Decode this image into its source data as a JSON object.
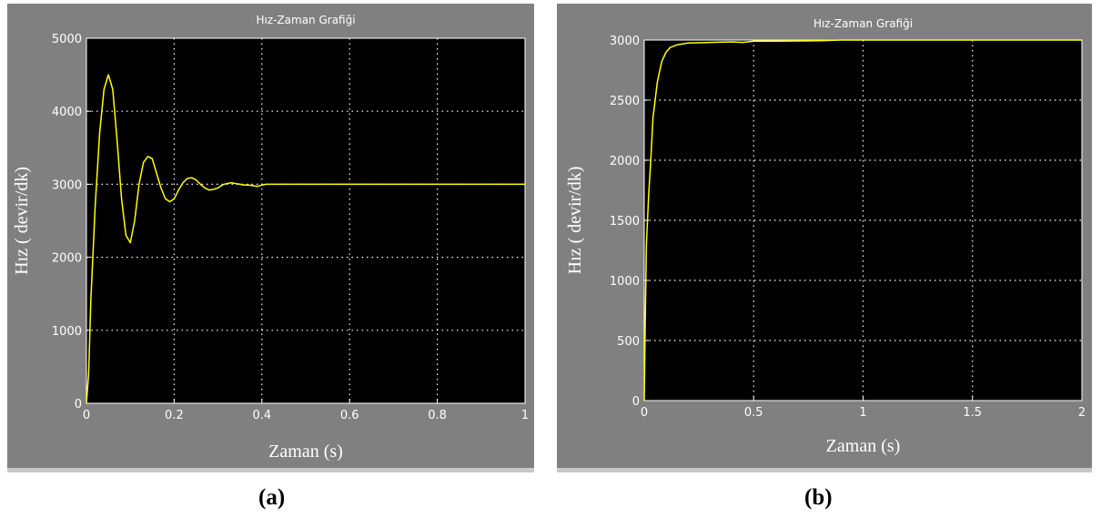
{
  "charts": [
    {
      "caption": "(a)",
      "chart_data": {
        "type": "line",
        "title": "Hız-Zaman Grafiği",
        "xlabel": "Zaman (s)",
        "ylabel": "Hız ( devir/dk)",
        "xlim": [
          0,
          1
        ],
        "ylim": [
          0,
          5000
        ],
        "xticks": [
          "0",
          "0.2",
          "0.4",
          "0.6",
          "0.8",
          "1"
        ],
        "yticks": [
          "0",
          "1000",
          "2000",
          "3000",
          "4000",
          "5000"
        ],
        "grid": true,
        "colors": {
          "figure_bg": "#808080",
          "axes_bg": "#000000",
          "line": "#ffff00",
          "grid": "#ffffff",
          "text": "#ffffff"
        },
        "series": [
          {
            "x": [
              0,
              0.005,
              0.01,
              0.02,
              0.03,
              0.04,
              0.05,
              0.06,
              0.07,
              0.08,
              0.09,
              0.1,
              0.11,
              0.12,
              0.13,
              0.14,
              0.15,
              0.16,
              0.17,
              0.18,
              0.19,
              0.2,
              0.21,
              0.22,
              0.23,
              0.24,
              0.25,
              0.26,
              0.27,
              0.28,
              0.29,
              0.3,
              0.31,
              0.32,
              0.33,
              0.34,
              0.35,
              0.36,
              0.37,
              0.38,
              0.39,
              0.4,
              0.41,
              0.5,
              0.6,
              0.7,
              0.8,
              0.9,
              1.0
            ],
            "y": [
              0,
              400,
              1400,
              2700,
              3700,
              4300,
              4500,
              4300,
              3600,
              2800,
              2300,
              2200,
              2500,
              3000,
              3300,
              3380,
              3350,
              3150,
              2950,
              2800,
              2760,
              2800,
              2920,
              3020,
              3080,
              3090,
              3060,
              3000,
              2950,
              2920,
              2930,
              2950,
              2990,
              3010,
              3020,
              3010,
              3000,
              2990,
              2990,
              2980,
              2970,
              2990,
              3000,
              3000,
              3000,
              3000,
              3000,
              3000,
              3000
            ]
          }
        ]
      }
    },
    {
      "caption": "(b)",
      "chart_data": {
        "type": "line",
        "title": "Hız-Zaman Grafiği",
        "xlabel": "Zaman (s)",
        "ylabel": "Hız ( devir/dk)",
        "xlim": [
          0,
          2
        ],
        "ylim": [
          0,
          3000
        ],
        "xticks": [
          "0",
          "0.5",
          "1",
          "1.5",
          "2"
        ],
        "yticks": [
          "0",
          "500",
          "1000",
          "1500",
          "2000",
          "2500",
          "3000"
        ],
        "grid": true,
        "colors": {
          "figure_bg": "#808080",
          "axes_bg": "#000000",
          "line": "#ffff00",
          "grid": "#ffffff",
          "text": "#ffffff"
        },
        "series": [
          {
            "x": [
              0,
              0.005,
              0.01,
              0.02,
              0.03,
              0.04,
              0.05,
              0.06,
              0.08,
              0.1,
              0.12,
              0.15,
              0.2,
              0.3,
              0.4,
              0.45,
              0.5,
              0.6,
              0.8,
              0.9,
              1.0,
              1.5,
              2.0
            ],
            "y": [
              0,
              700,
              1300,
              1700,
              2000,
              2350,
              2500,
              2650,
              2820,
              2900,
              2940,
              2960,
              2975,
              2980,
              2985,
              2980,
              2990,
              2990,
              2995,
              3000,
              3000,
              3000,
              3000
            ]
          }
        ]
      }
    }
  ]
}
